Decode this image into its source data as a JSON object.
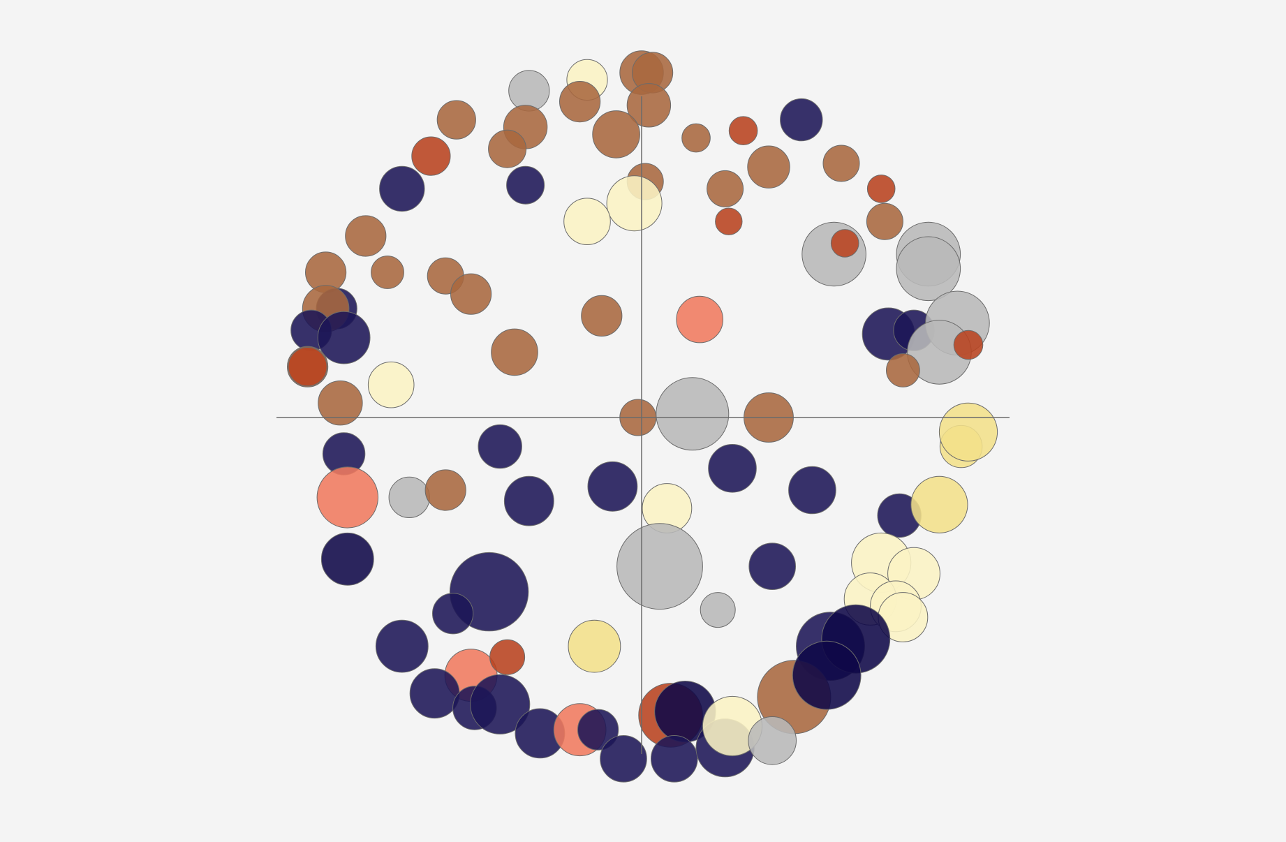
{
  "chart_data": {
    "type": "scatter",
    "title": "",
    "xlabel": "",
    "ylabel": "",
    "xlim": [
      -100,
      100
    ],
    "ylim": [
      -100,
      100
    ],
    "axes": "cross-at-origin",
    "grid": false,
    "legend": "none",
    "colors": {
      "brown": "#a8683f",
      "navy": "#1c1657",
      "gray": "#b8b8b8",
      "rust": "#b8421f",
      "cream": "#fbf3c4",
      "yellow": "#f3e08a",
      "salmon": "#f07a5e",
      "deep": "#0f0848"
    },
    "bubbles": [
      {
        "x": 0,
        "y": 95,
        "r": 6.0,
        "c": "brown"
      },
      {
        "x": 3,
        "y": 95,
        "r": 5.6,
        "c": "brown"
      },
      {
        "x": -15,
        "y": 93,
        "r": 5.6,
        "c": "cream"
      },
      {
        "x": -31,
        "y": 90,
        "r": 5.6,
        "c": "gray"
      },
      {
        "x": 2,
        "y": 86,
        "r": 6.0,
        "c": "brown"
      },
      {
        "x": -17,
        "y": 87,
        "r": 5.6,
        "c": "brown"
      },
      {
        "x": -51,
        "y": 82,
        "r": 5.3,
        "c": "brown"
      },
      {
        "x": -32,
        "y": 80,
        "r": 6.0,
        "c": "brown"
      },
      {
        "x": -7,
        "y": 78,
        "r": 6.5,
        "c": "brown"
      },
      {
        "x": 15,
        "y": 77,
        "r": 3.9,
        "c": "brown"
      },
      {
        "x": 28,
        "y": 79,
        "r": 3.9,
        "c": "rust"
      },
      {
        "x": 44,
        "y": 82,
        "r": 5.8,
        "c": "navy"
      },
      {
        "x": -37,
        "y": 74,
        "r": 5.2,
        "c": "brown"
      },
      {
        "x": -58,
        "y": 72,
        "r": 5.3,
        "c": "rust"
      },
      {
        "x": 35,
        "y": 69,
        "r": 5.8,
        "c": "brown"
      },
      {
        "x": 55,
        "y": 70,
        "r": 5.0,
        "c": "brown"
      },
      {
        "x": -66,
        "y": 63,
        "r": 6.2,
        "c": "navy"
      },
      {
        "x": -32,
        "y": 64,
        "r": 5.2,
        "c": "navy"
      },
      {
        "x": 23,
        "y": 63,
        "r": 5.0,
        "c": "brown"
      },
      {
        "x": 1,
        "y": 65,
        "r": 5.0,
        "c": "brown"
      },
      {
        "x": -2,
        "y": 59,
        "r": 7.6,
        "c": "cream"
      },
      {
        "x": -15,
        "y": 54,
        "r": 6.4,
        "c": "cream"
      },
      {
        "x": 66,
        "y": 63,
        "r": 3.8,
        "c": "rust"
      },
      {
        "x": 24,
        "y": 54,
        "r": 3.7,
        "c": "rust"
      },
      {
        "x": 67,
        "y": 54,
        "r": 5.0,
        "c": "brown"
      },
      {
        "x": -76,
        "y": 50,
        "r": 5.6,
        "c": "brown"
      },
      {
        "x": 53,
        "y": 45,
        "r": 8.8,
        "c": "gray"
      },
      {
        "x": 56,
        "y": 48,
        "r": 3.8,
        "c": "rust"
      },
      {
        "x": 79,
        "y": 45,
        "r": 8.8,
        "c": "gray"
      },
      {
        "x": 79,
        "y": 41,
        "r": 8.8,
        "c": "gray"
      },
      {
        "x": -87,
        "y": 40,
        "r": 5.6,
        "c": "brown"
      },
      {
        "x": -70,
        "y": 40,
        "r": 4.5,
        "c": "brown"
      },
      {
        "x": -54,
        "y": 39,
        "r": 5.0,
        "c": "brown"
      },
      {
        "x": -47,
        "y": 34,
        "r": 5.6,
        "c": "brown"
      },
      {
        "x": -11,
        "y": 28,
        "r": 5.6,
        "c": "brown"
      },
      {
        "x": 16,
        "y": 27,
        "r": 6.4,
        "c": "salmon"
      },
      {
        "x": -84,
        "y": 30,
        "r": 5.6,
        "c": "navy"
      },
      {
        "x": -87,
        "y": 30,
        "r": 6.4,
        "c": "brown"
      },
      {
        "x": -91,
        "y": 24,
        "r": 5.6,
        "c": "navy"
      },
      {
        "x": -82,
        "y": 22,
        "r": 7.2,
        "c": "navy"
      },
      {
        "x": 68,
        "y": 23,
        "r": 7.2,
        "c": "navy"
      },
      {
        "x": 75,
        "y": 24,
        "r": 5.6,
        "c": "navy"
      },
      {
        "x": 87,
        "y": 26,
        "r": 8.8,
        "c": "gray"
      },
      {
        "x": 82,
        "y": 18,
        "r": 8.8,
        "c": "gray"
      },
      {
        "x": 90,
        "y": 20,
        "r": 4.0,
        "c": "rust"
      },
      {
        "x": -35,
        "y": 18,
        "r": 6.4,
        "c": "brown"
      },
      {
        "x": -92,
        "y": 14,
        "r": 5.6,
        "c": "brown"
      },
      {
        "x": -92,
        "y": 14,
        "r": 5.3,
        "c": "rust"
      },
      {
        "x": -69,
        "y": 9,
        "r": 6.3,
        "c": "cream"
      },
      {
        "x": -83,
        "y": 4,
        "r": 6.1,
        "c": "brown"
      },
      {
        "x": 72,
        "y": 13,
        "r": 4.6,
        "c": "brown"
      },
      {
        "x": -1,
        "y": 0,
        "r": 5.0,
        "c": "brown"
      },
      {
        "x": 14,
        "y": 1,
        "r": 10.0,
        "c": "gray"
      },
      {
        "x": 35,
        "y": 0,
        "r": 6.8,
        "c": "brown"
      },
      {
        "x": 88,
        "y": -8,
        "r": 5.8,
        "c": "yellow"
      },
      {
        "x": 90,
        "y": -4,
        "r": 8.0,
        "c": "yellow"
      },
      {
        "x": -82,
        "y": -10,
        "r": 5.8,
        "c": "navy"
      },
      {
        "x": -39,
        "y": -8,
        "r": 6.0,
        "c": "navy"
      },
      {
        "x": 25,
        "y": -14,
        "r": 6.6,
        "c": "navy"
      },
      {
        "x": 47,
        "y": -20,
        "r": 6.5,
        "c": "navy"
      },
      {
        "x": -81,
        "y": -22,
        "r": 8.4,
        "c": "salmon"
      },
      {
        "x": -64,
        "y": -22,
        "r": 5.6,
        "c": "gray"
      },
      {
        "x": -54,
        "y": -20,
        "r": 5.6,
        "c": "brown"
      },
      {
        "x": -31,
        "y": -23,
        "r": 6.8,
        "c": "navy"
      },
      {
        "x": -8,
        "y": -19,
        "r": 6.8,
        "c": "navy"
      },
      {
        "x": 7,
        "y": -25,
        "r": 6.8,
        "c": "cream"
      },
      {
        "x": 71,
        "y": -27,
        "r": 6.0,
        "c": "navy"
      },
      {
        "x": 82,
        "y": -24,
        "r": 7.8,
        "c": "yellow"
      },
      {
        "x": -81,
        "y": -39,
        "r": 7.2,
        "c": "deep"
      },
      {
        "x": -42,
        "y": -48,
        "r": 10.8,
        "c": "navy"
      },
      {
        "x": 5,
        "y": -41,
        "r": 11.8,
        "c": "gray"
      },
      {
        "x": 36,
        "y": -41,
        "r": 6.4,
        "c": "navy"
      },
      {
        "x": 21,
        "y": -53,
        "r": 4.8,
        "c": "gray"
      },
      {
        "x": 66,
        "y": -40,
        "r": 8.2,
        "c": "cream"
      },
      {
        "x": 75,
        "y": -43,
        "r": 7.2,
        "c": "cream"
      },
      {
        "x": 63,
        "y": -50,
        "r": 7.2,
        "c": "cream"
      },
      {
        "x": 70,
        "y": -52,
        "r": 7.0,
        "c": "cream"
      },
      {
        "x": 72,
        "y": -55,
        "r": 6.8,
        "c": "cream"
      },
      {
        "x": -52,
        "y": -54,
        "r": 5.6,
        "c": "navy"
      },
      {
        "x": -66,
        "y": -63,
        "r": 7.2,
        "c": "navy"
      },
      {
        "x": -13,
        "y": -63,
        "r": 7.2,
        "c": "yellow"
      },
      {
        "x": 52,
        "y": -63,
        "r": 9.4,
        "c": "navy"
      },
      {
        "x": 59,
        "y": -61,
        "r": 9.4,
        "c": "deep"
      },
      {
        "x": -47,
        "y": -71,
        "r": 7.2,
        "c": "salmon"
      },
      {
        "x": -37,
        "y": -66,
        "r": 4.8,
        "c": "rust"
      },
      {
        "x": -57,
        "y": -76,
        "r": 6.8,
        "c": "navy"
      },
      {
        "x": -46,
        "y": -80,
        "r": 6.0,
        "c": "navy"
      },
      {
        "x": -39,
        "y": -79,
        "r": 8.2,
        "c": "navy"
      },
      {
        "x": 42,
        "y": -77,
        "r": 10.1,
        "c": "brown"
      },
      {
        "x": 51,
        "y": -71,
        "r": 9.4,
        "c": "deep"
      },
      {
        "x": -28,
        "y": -87,
        "r": 6.8,
        "c": "navy"
      },
      {
        "x": -17,
        "y": -86,
        "r": 7.2,
        "c": "salmon"
      },
      {
        "x": -12,
        "y": -86,
        "r": 5.6,
        "c": "navy"
      },
      {
        "x": 8,
        "y": -82,
        "r": 8.8,
        "c": "rust"
      },
      {
        "x": 12,
        "y": -81,
        "r": 8.4,
        "c": "deep"
      },
      {
        "x": -5,
        "y": -94,
        "r": 6.4,
        "c": "navy"
      },
      {
        "x": 9,
        "y": -94,
        "r": 6.4,
        "c": "navy"
      },
      {
        "x": 23,
        "y": -91,
        "r": 8.0,
        "c": "navy"
      },
      {
        "x": 25,
        "y": -85,
        "r": 8.2,
        "c": "cream"
      },
      {
        "x": 36,
        "y": -89,
        "r": 6.6,
        "c": "gray"
      }
    ]
  }
}
